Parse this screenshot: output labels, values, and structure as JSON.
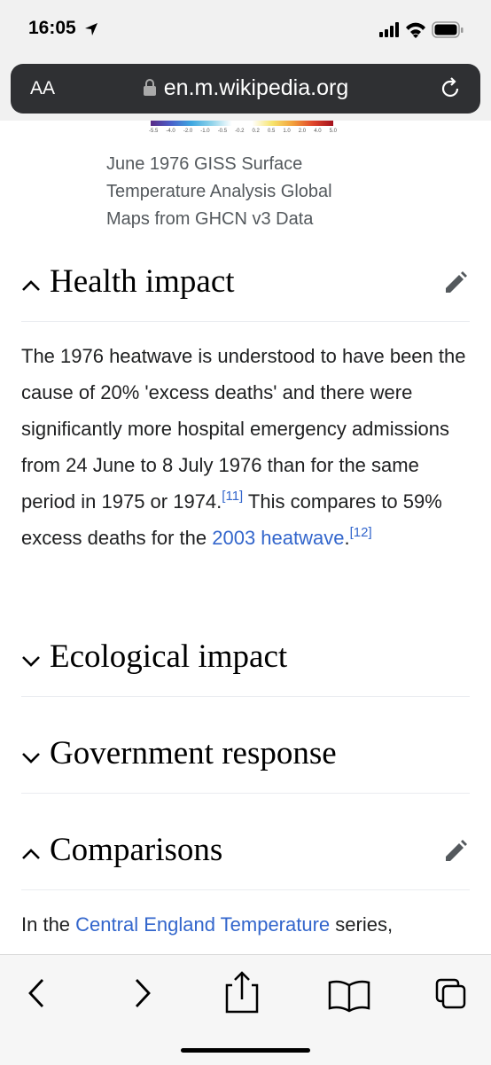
{
  "status_bar": {
    "time": "16:05"
  },
  "address_bar": {
    "text_size_button": "AA",
    "url": "en.m.wikipedia.org"
  },
  "figure": {
    "scale_labels": [
      "-5.5",
      "-4.0",
      "-2.0",
      "-1.0",
      "-0.5",
      "-0.2",
      "0.2",
      "0.5",
      "1.0",
      "2.0",
      "4.0",
      "5.0"
    ],
    "caption": "June 1976 GISS Surface Temperature Analysis Global Maps from GHCN v3 Data"
  },
  "sections": [
    {
      "heading": "Health impact",
      "expanded": true,
      "editable": true,
      "paragraph": [
        {
          "text": "The 1976 heatwave is understood to have been the cause of 20% 'excess deaths' and there were significantly more hospital emergency admissions from 24 June to 8 July 1976 than for the same period in 1975 or 1974."
        },
        {
          "ref": "[11]"
        },
        {
          "text": " This compares to 59% excess deaths for the "
        },
        {
          "link": "2003 heatwave"
        },
        {
          "text": "."
        },
        {
          "ref": "[12]"
        }
      ]
    },
    {
      "heading": "Ecological impact",
      "expanded": false,
      "editable": false
    },
    {
      "heading": "Government response",
      "expanded": false,
      "editable": false
    },
    {
      "heading": "Comparisons",
      "expanded": true,
      "editable": true,
      "paragraph": [
        {
          "text": "In the "
        },
        {
          "link": "Central England Temperature"
        },
        {
          "text": " series,"
        }
      ]
    }
  ]
}
